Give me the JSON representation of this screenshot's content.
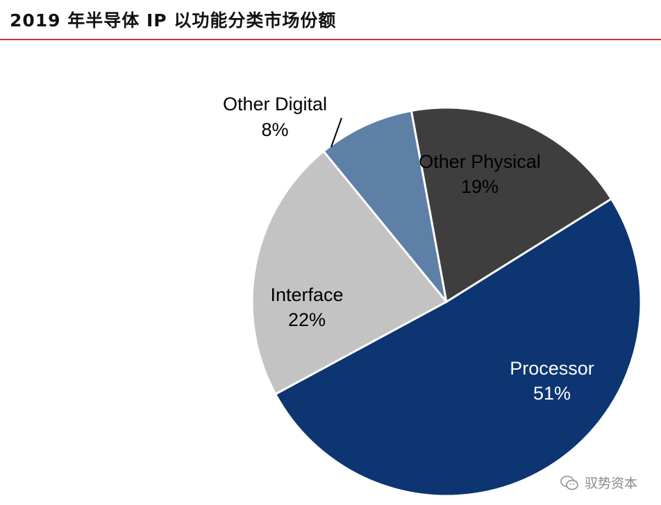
{
  "title": "2019 年半导体 IP 以功能分类市场份额",
  "watermark": {
    "text": "驭势资本",
    "icon": "wechat-icon"
  },
  "colors": {
    "rule": "#c0392b",
    "Processor": "#0c3572",
    "Interface": "#c3c3c3",
    "Other Digital": "#5f80a6",
    "Other Physical": "#3e3e3e"
  },
  "chart_data": {
    "type": "pie",
    "title": "2019 年半导体 IP 以功能分类市场份额",
    "slices": [
      {
        "label": "Processor",
        "value": 51,
        "pct_label": "51%",
        "color": "#0c3572",
        "text_color": "#ffffff"
      },
      {
        "label": "Interface",
        "value": 22,
        "pct_label": "22%",
        "color": "#c3c3c3",
        "text_color": "#000000"
      },
      {
        "label": "Other Digital",
        "value": 8,
        "pct_label": "8%",
        "color": "#5f80a6",
        "text_color": "#000000"
      },
      {
        "label": "Other Physical",
        "value": 19,
        "pct_label": "19%",
        "color": "#3e3e3e",
        "text_color": "#ffffff"
      }
    ],
    "legend": "none",
    "labels": "on-slice"
  }
}
